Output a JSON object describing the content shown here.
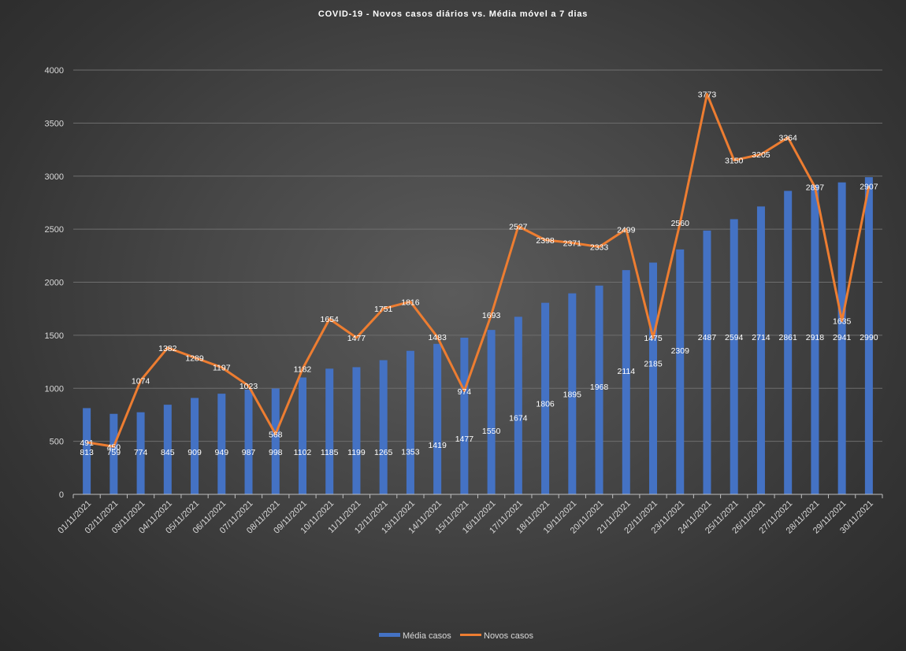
{
  "chart_data": {
    "type": "bar+line",
    "title": "COVID-19  - Novos casos diários  vs. Média  móvel  a 7 dias",
    "categories": [
      "01/11/2021",
      "02/11/2021",
      "03/11/2021",
      "04/11/2021",
      "05/11/2021",
      "06/11/2021",
      "07/11/2021",
      "08/11/2021",
      "09/11/2021",
      "10/11/2021",
      "11/11/2021",
      "12/11/2021",
      "13/11/2021",
      "14/11/2021",
      "15/11/2021",
      "16/11/2021",
      "17/11/2021",
      "18/11/2021",
      "19/11/2021",
      "20/11/2021",
      "21/11/2021",
      "22/11/2021",
      "23/11/2021",
      "24/11/2021",
      "25/11/2021",
      "26/11/2021",
      "27/11/2021",
      "28/11/2021",
      "29/11/2021",
      "30/11/2021"
    ],
    "series": [
      {
        "name": "Média casos",
        "type": "bar",
        "color": "#4472c4",
        "values": [
          813,
          759,
          774,
          845,
          909,
          949,
          987,
          998,
          1102,
          1185,
          1199,
          1265,
          1353,
          1419,
          1477,
          1550,
          1674,
          1806,
          1895,
          1968,
          2114,
          2185,
          2309,
          2487,
          2594,
          2714,
          2861,
          2918,
          2941,
          2990
        ]
      },
      {
        "name": "Novos casos",
        "type": "line",
        "color": "#ed7d31",
        "values": [
          491,
          450,
          1074,
          1382,
          1289,
          1197,
          1023,
          568,
          1182,
          1654,
          1477,
          1751,
          1816,
          1483,
          974,
          1693,
          2527,
          2398,
          2371,
          2333,
          2499,
          1475,
          2560,
          3773,
          3150,
          3205,
          3364,
          2897,
          1635,
          2907
        ]
      }
    ],
    "ylim": [
      0,
      4000
    ],
    "yticks": [
      0,
      500,
      1000,
      1500,
      2000,
      2500,
      3000,
      3500,
      4000
    ],
    "grid": true,
    "legend": "bottom"
  }
}
